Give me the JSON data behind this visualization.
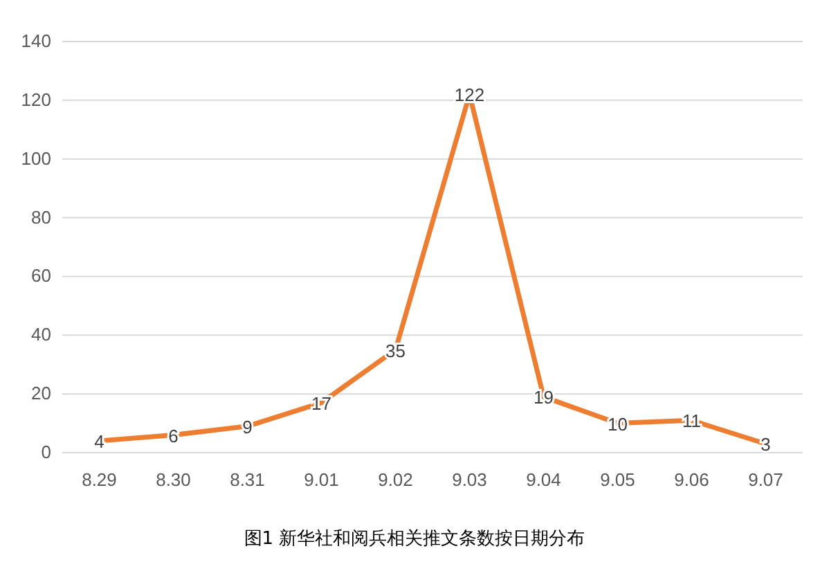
{
  "chart_data": {
    "type": "line",
    "title": "图1 新华社和阅兵相关推文条数按日期分布",
    "categories": [
      "8.29",
      "8.30",
      "8.31",
      "9.01",
      "9.02",
      "9.03",
      "9.04",
      "9.05",
      "9.06",
      "9.07"
    ],
    "series": [
      {
        "color": "#ed7d31",
        "values": [
          4,
          6,
          9,
          17,
          35,
          122,
          19,
          10,
          11,
          3
        ]
      }
    ],
    "ylim": [
      0,
      140
    ],
    "yticks": [
      0,
      20,
      40,
      60,
      80,
      100,
      120,
      140
    ],
    "grid": "y",
    "data_labels": true,
    "marker": "none",
    "line_style": "solid"
  }
}
